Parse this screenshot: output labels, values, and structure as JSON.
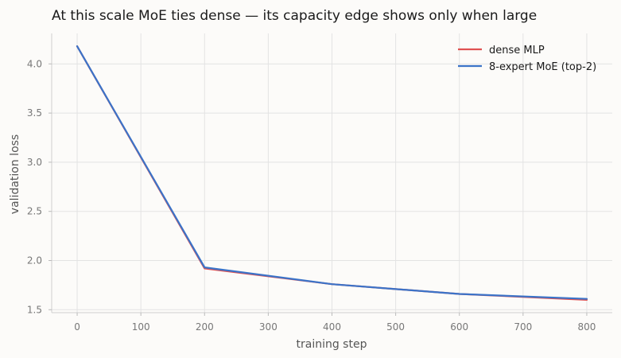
{
  "chart_data": {
    "type": "line",
    "title": "At this scale MoE ties dense — its capacity edge shows only when large",
    "xlabel": "training step",
    "ylabel": "validation loss",
    "xlim": [
      -40,
      840
    ],
    "ylim": [
      1.47,
      4.31
    ],
    "xticks": [
      0,
      100,
      200,
      300,
      400,
      500,
      600,
      700,
      800
    ],
    "yticks": [
      1.5,
      2.0,
      2.5,
      3.0,
      3.5,
      4.0
    ],
    "xtick_labels": [
      "0",
      "100",
      "200",
      "300",
      "400",
      "500",
      "600",
      "700",
      "800"
    ],
    "ytick_labels": [
      "1.5",
      "2.0",
      "2.5",
      "3.0",
      "3.5",
      "4.0"
    ],
    "grid": true,
    "legend_position": "top-right",
    "series": [
      {
        "name": "dense MLP",
        "color": "#e05252",
        "x": [
          0,
          200,
          400,
          600,
          800
        ],
        "y": [
          4.18,
          1.92,
          1.76,
          1.66,
          1.6
        ]
      },
      {
        "name": "8-expert MoE (top-2)",
        "color": "#3b73c8",
        "x": [
          0,
          200,
          400,
          600,
          800
        ],
        "y": [
          4.18,
          1.93,
          1.76,
          1.66,
          1.61
        ]
      }
    ]
  }
}
